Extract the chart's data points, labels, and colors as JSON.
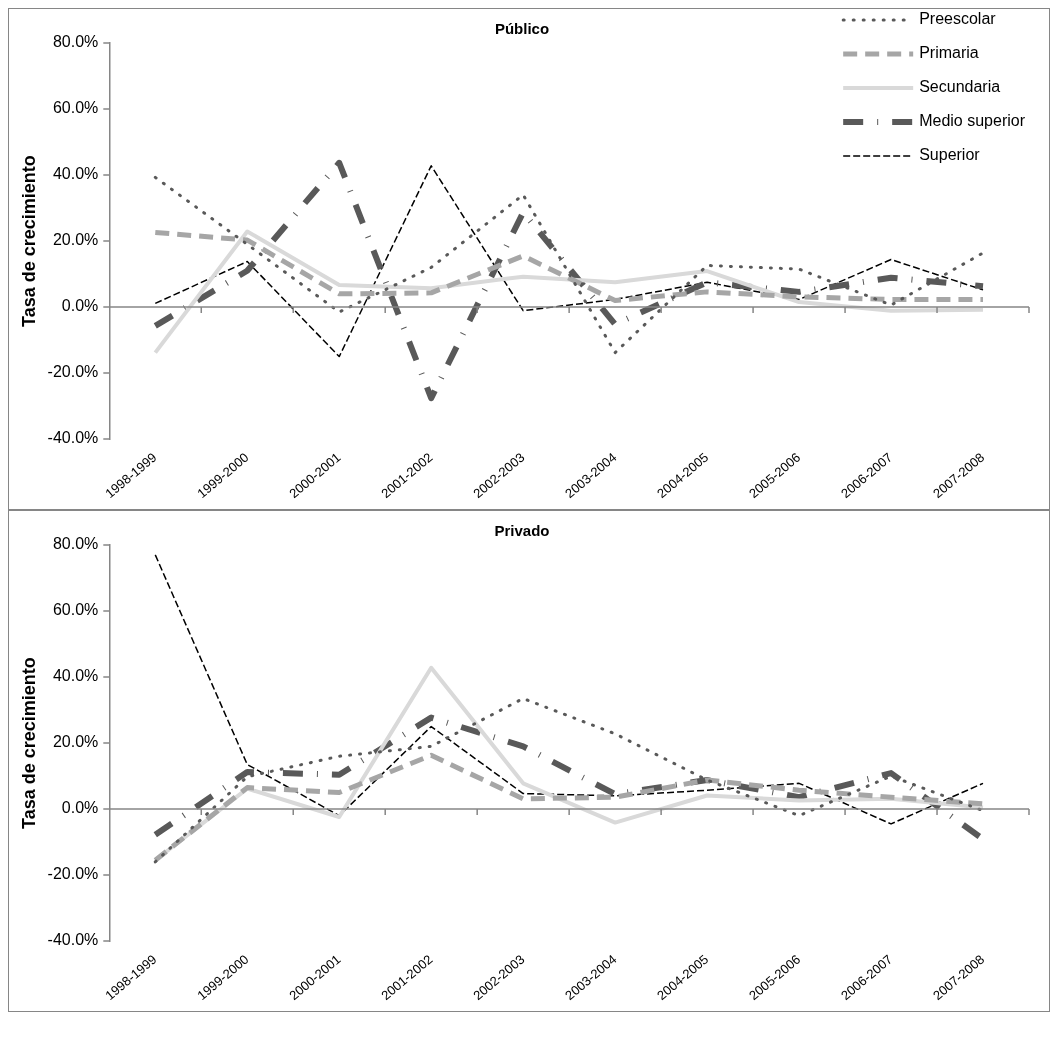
{
  "chart_data": [
    {
      "type": "line",
      "title": "Público",
      "ylabel": "Tasa de crecimiento",
      "categories": [
        "1998-1999",
        "1999-2000",
        "2000-2001",
        "2001-2002",
        "2002-2003",
        "2003-2004",
        "2004-2005",
        "2005-2006",
        "2006-2007",
        "2007-2008"
      ],
      "series": [
        {
          "name": "Preescolar",
          "color": "#595959",
          "line_style": "dotted",
          "values": [
            39.3,
            19,
            -1.5,
            12,
            34,
            -13.8,
            12.6,
            11.5,
            0.6,
            16.4
          ]
        },
        {
          "name": "Primaria",
          "color": "#a6a6a6",
          "line_style": "dashed",
          "values": [
            22.6,
            20.3,
            4,
            4.3,
            15.5,
            2,
            4.6,
            3.1,
            2.3,
            2.3
          ]
        },
        {
          "name": "Secundaria",
          "color": "#d9d9d9",
          "line_style": "solid",
          "values": [
            -13.8,
            22.9,
            6.7,
            5.7,
            9.2,
            7.5,
            10.9,
            1.5,
            -1.1,
            -0.8
          ]
        },
        {
          "name": "Medio superior",
          "color": "#595959",
          "line_style": "dashed",
          "values": [
            -5.7,
            11,
            43.7,
            -27.6,
            28.7,
            -5.2,
            7.5,
            4.6,
            8.9,
            6.3
          ]
        },
        {
          "name": "Superior",
          "color": "#000000",
          "line_style": "dashed",
          "values": [
            1.1,
            13.8,
            -15,
            42.8,
            -1.1,
            2.3,
            7.5,
            2.3,
            14.4,
            5.2
          ]
        }
      ],
      "ylim": [
        -40,
        80
      ],
      "yticks": [
        {
          "value": -40,
          "label": "-40.0%"
        },
        {
          "value": -20,
          "label": "-20.0%"
        },
        {
          "value": 0,
          "label": "0.0%"
        },
        {
          "value": 20,
          "label": "20.0%"
        },
        {
          "value": 40,
          "label": "40.0%"
        },
        {
          "value": 60,
          "label": "60.0%"
        },
        {
          "value": 80,
          "label": "80.0%"
        }
      ],
      "legend": "top right",
      "marker": "none"
    },
    {
      "type": "line",
      "title": "Privado",
      "ylabel": "Tasa de crecimiento",
      "categories": [
        "1998-1999",
        "1999-2000",
        "2000-2001",
        "2001-2002",
        "2002-2003",
        "2003-2004",
        "2004-2005",
        "2005-2006",
        "2006-2007",
        "2007-2008"
      ],
      "series": [
        {
          "color": "#595959",
          "line_style": "dotted",
          "values": [
            -16,
            9.8,
            16,
            19,
            33.5,
            22.8,
            8.8,
            -2,
            10,
            -0.5
          ]
        },
        {
          "color": "#a6a6a6",
          "line_style": "dashed",
          "values": [
            -15.5,
            6.5,
            5,
            16.3,
            3.1,
            3.6,
            8.8,
            5.7,
            3.6,
            1.6
          ]
        },
        {
          "color": "#d9d9d9",
          "line_style": "solid",
          "values": [
            -15.5,
            6.2,
            -2.4,
            42.8,
            7.8,
            -4.1,
            4.1,
            2.6,
            3.1,
            0.5
          ]
        },
        {
          "color": "#595959",
          "line_style": "dashed",
          "values": [
            -7.8,
            11.2,
            10.4,
            27.7,
            19,
            4.5,
            8.8,
            3.6,
            10.9,
            -9.1
          ]
        },
        {
          "color": "#000000",
          "line_style": "dashed",
          "values": [
            77,
            13.5,
            -2,
            25,
            4.7,
            4,
            5.7,
            7.8,
            -4.5,
            7.8
          ]
        }
      ],
      "ylim": [
        -40,
        80
      ],
      "yticks": [
        {
          "value": -40,
          "label": "-40.0%"
        },
        {
          "value": -20,
          "label": "-20.0%"
        },
        {
          "value": 0,
          "label": "0.0%"
        },
        {
          "value": 20,
          "label": "20.0%"
        },
        {
          "value": 40,
          "label": "40.0%"
        },
        {
          "value": 60,
          "label": "60.0%"
        },
        {
          "value": 80,
          "label": "80.0%"
        }
      ],
      "legend": false,
      "marker": "none"
    }
  ]
}
